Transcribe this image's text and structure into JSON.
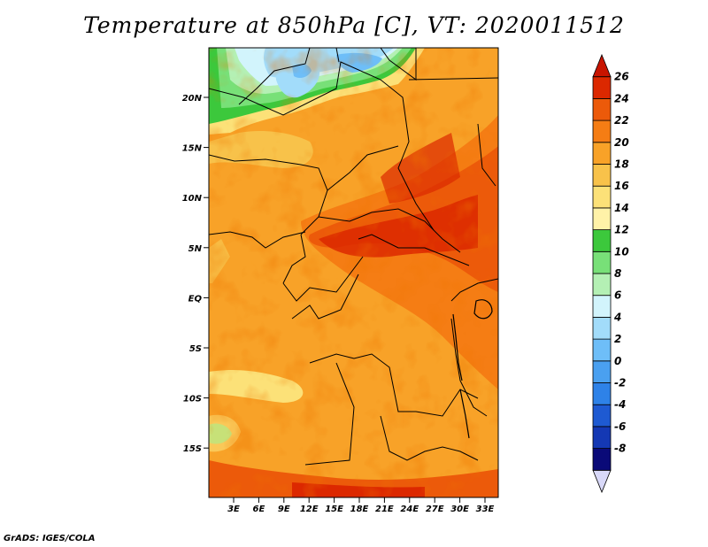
{
  "title": "Temperature at 850hPa [C], VT: 2020011512",
  "credit": "GrADS: IGES/COLA",
  "lat_labels": [
    "20N",
    "15N",
    "10N",
    "5N",
    "EQ",
    "5S",
    "10S",
    "15S"
  ],
  "lon_labels": [
    "3E",
    "6E",
    "9E",
    "12E",
    "15E",
    "18E",
    "21E",
    "24E",
    "27E",
    "30E",
    "33E"
  ],
  "colorbar": {
    "labels": [
      "26",
      "24",
      "22",
      "20",
      "18",
      "16",
      "14",
      "12",
      "10",
      "8",
      "6",
      "4",
      "2",
      "0",
      "-2",
      "-4",
      "-6",
      "-8"
    ],
    "colors": [
      "#d8d8f8",
      "#0a0a78",
      "#1438b4",
      "#1e5ad2",
      "#2e82e8",
      "#4aa0f0",
      "#6ebef8",
      "#a2dcfa",
      "#d2f4fc",
      "#b4f0b4",
      "#78e078",
      "#3cc83c",
      "#fff2a8",
      "#fce178",
      "#f8c24a",
      "#f8a228",
      "#f57d14",
      "#ec5a0a",
      "#dc2800",
      "#c81400"
    ]
  }
}
